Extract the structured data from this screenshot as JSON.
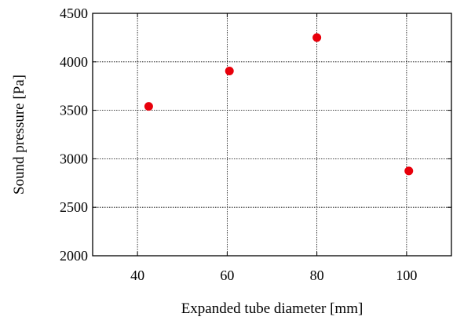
{
  "chart_data": {
    "type": "scatter",
    "title": "",
    "xlabel": "Expanded tube diameter [mm]",
    "ylabel": "Sound pressure [Pa]",
    "xlim": [
      30,
      110
    ],
    "ylim": [
      2000,
      4500
    ],
    "xticks": [
      40,
      60,
      80,
      100
    ],
    "yticks": [
      2000,
      2500,
      3000,
      3500,
      4000,
      4500
    ],
    "grid": true,
    "legend": "none",
    "marker_color": "#e8000b",
    "series": [
      {
        "x": [
          42.5,
          60.5,
          80.0,
          100.5
        ],
        "y": [
          3540,
          3905,
          4250,
          2875
        ]
      }
    ]
  }
}
